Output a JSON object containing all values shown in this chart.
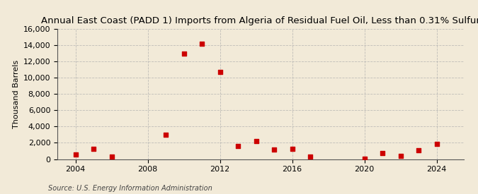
{
  "title": "Annual East Coast (PADD 1) Imports from Algeria of Residual Fuel Oil, Less than 0.31% Sulfur",
  "ylabel": "Thousand Barrels",
  "source": "Source: U.S. Energy Information Administration",
  "background_color": "#f2ead8",
  "plot_bg_color": "#f2ead8",
  "point_color": "#cc0000",
  "years": [
    2004,
    2005,
    2006,
    2009,
    2010,
    2011,
    2012,
    2013,
    2014,
    2015,
    2016,
    2017,
    2020,
    2021,
    2022,
    2023,
    2024
  ],
  "values": [
    600,
    1300,
    300,
    3000,
    13000,
    14200,
    10700,
    1600,
    2200,
    1200,
    1300,
    300,
    50,
    700,
    400,
    1100,
    1900
  ],
  "ylim": [
    0,
    16000
  ],
  "yticks": [
    0,
    2000,
    4000,
    6000,
    8000,
    10000,
    12000,
    14000,
    16000
  ],
  "xlim": [
    2003,
    2025.5
  ],
  "xticks": [
    2004,
    2008,
    2012,
    2016,
    2020,
    2024
  ],
  "title_fontsize": 9.5,
  "axis_fontsize": 8,
  "source_fontsize": 7,
  "marker_size": 4
}
